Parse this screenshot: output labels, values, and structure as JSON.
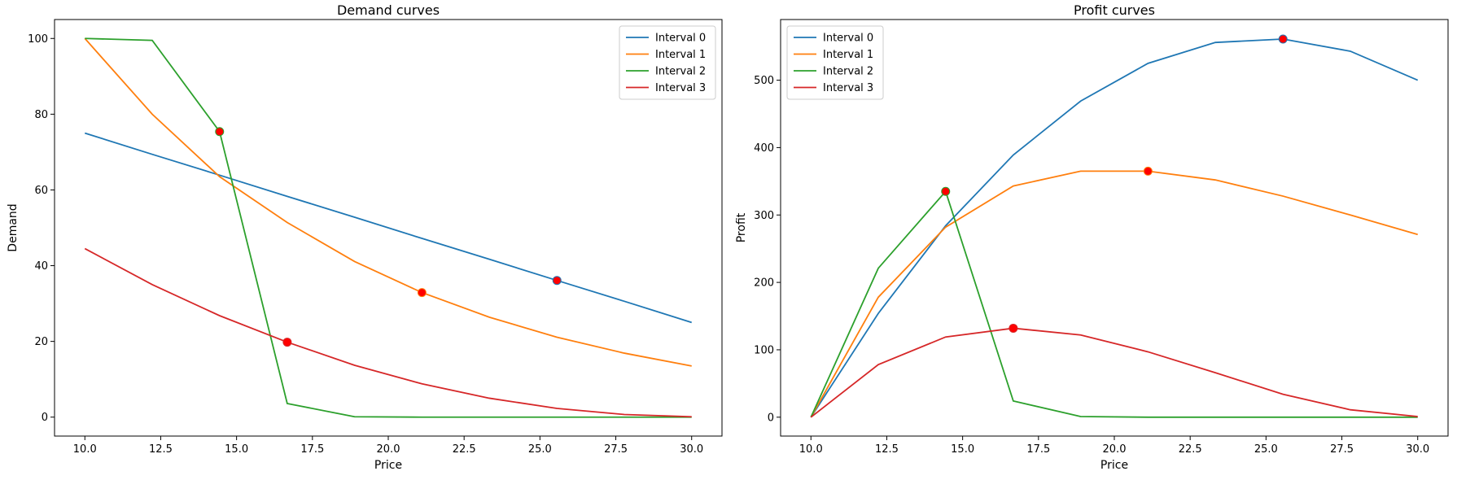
{
  "chart_data": [
    {
      "type": "line",
      "title": "Demand curves",
      "xlabel": "Price",
      "ylabel": "Demand",
      "xlim": [
        9.0,
        31.0
      ],
      "ylim": [
        -5,
        105
      ],
      "xticks": [
        "10.0",
        "12.5",
        "15.0",
        "17.5",
        "20.0",
        "22.5",
        "25.0",
        "27.5",
        "30.0"
      ],
      "yticks": [
        "0",
        "20",
        "40",
        "60",
        "80",
        "100"
      ],
      "legend_position": "top-right",
      "x": [
        10.0,
        12.22,
        14.44,
        16.67,
        18.89,
        21.11,
        23.33,
        25.56,
        27.78,
        30.0
      ],
      "series": [
        {
          "name": "Interval 0",
          "color": "#1f77b4",
          "values": [
            75.0,
            69.4,
            63.9,
            58.3,
            52.8,
            47.2,
            41.7,
            36.1,
            30.6,
            25.0
          ]
        },
        {
          "name": "Interval 1",
          "color": "#ff7f0e",
          "values": [
            100.0,
            80.0,
            63.5,
            51.4,
            41.1,
            32.9,
            26.4,
            21.1,
            16.9,
            13.5
          ]
        },
        {
          "name": "Interval 2",
          "color": "#2ca02c",
          "values": [
            100.0,
            99.5,
            75.4,
            3.6,
            0.1,
            0.0,
            0.0,
            0.0,
            0.0,
            0.0
          ]
        },
        {
          "name": "Interval 3",
          "color": "#d62728",
          "values": [
            44.5,
            35.0,
            26.8,
            19.8,
            13.7,
            8.8,
            5.0,
            2.3,
            0.7,
            0.1
          ]
        }
      ],
      "optimal_points": [
        {
          "series": "Interval 0",
          "x": 25.56,
          "y": 36.1
        },
        {
          "series": "Interval 1",
          "x": 21.11,
          "y": 32.9
        },
        {
          "series": "Interval 2",
          "x": 14.44,
          "y": 75.4
        },
        {
          "series": "Interval 3",
          "x": 16.67,
          "y": 19.8
        }
      ]
    },
    {
      "type": "line",
      "title": "Profit curves",
      "xlabel": "Price",
      "ylabel": "Profit",
      "xlim": [
        9.0,
        31.0
      ],
      "ylim": [
        -28,
        590
      ],
      "xticks": [
        "10.0",
        "12.5",
        "15.0",
        "17.5",
        "20.0",
        "22.5",
        "25.0",
        "27.5",
        "30.0"
      ],
      "yticks": [
        "0",
        "100",
        "200",
        "300",
        "400",
        "500"
      ],
      "legend_position": "top-left",
      "x": [
        10.0,
        12.22,
        14.44,
        16.67,
        18.89,
        21.11,
        23.33,
        25.56,
        27.78,
        30.0
      ],
      "series": [
        {
          "name": "Interval 0",
          "color": "#1f77b4",
          "values": [
            0,
            154,
            284,
            389,
            469,
            525,
            556,
            561,
            543,
            500
          ]
        },
        {
          "name": "Interval 1",
          "color": "#ff7f0e",
          "values": [
            0,
            178,
            282,
            343,
            365,
            365,
            352,
            328,
            300,
            271
          ]
        },
        {
          "name": "Interval 2",
          "color": "#2ca02c",
          "values": [
            0,
            221,
            335,
            24,
            1,
            0,
            0,
            0,
            0,
            0
          ]
        },
        {
          "name": "Interval 3",
          "color": "#d62728",
          "values": [
            0,
            78,
            119,
            132,
            122,
            97,
            66,
            34,
            11,
            1
          ]
        }
      ],
      "optimal_points": [
        {
          "series": "Interval 0",
          "x": 25.56,
          "y": 561
        },
        {
          "series": "Interval 1",
          "x": 21.11,
          "y": 365
        },
        {
          "series": "Interval 2",
          "x": 14.44,
          "y": 335
        },
        {
          "series": "Interval 3",
          "x": 16.67,
          "y": 132
        }
      ]
    }
  ]
}
